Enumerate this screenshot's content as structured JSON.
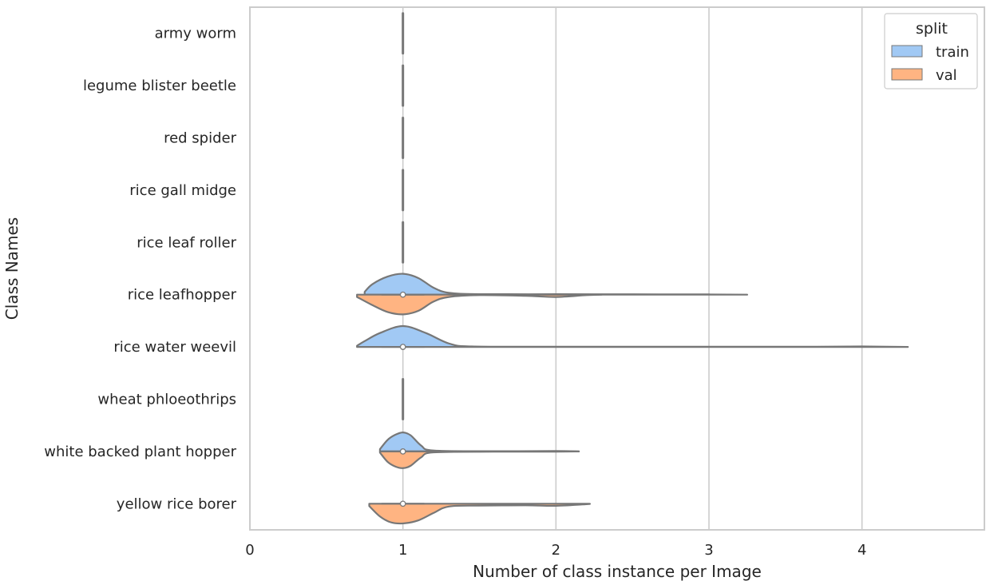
{
  "chart_data": {
    "type": "violin",
    "split": true,
    "orientation": "horizontal",
    "title": "",
    "xlabel": "Number of class instance per Image",
    "ylabel": "Class Names",
    "xlim": [
      0,
      4.8
    ],
    "xticks": [
      "0",
      "1",
      "2",
      "3",
      "4"
    ],
    "grid": "vertical",
    "legend": {
      "title": "split",
      "placement": "top-right",
      "entries": [
        "train",
        "val"
      ]
    },
    "colors": {
      "train": "#a1c9f4",
      "val": "#ffb482",
      "outline": "#777777",
      "grid": "#cccccc",
      "frame": "#cccccc"
    },
    "categories": [
      "army worm",
      "legume blister beetle",
      "red spider",
      "rice gall midge",
      "rice leaf roller",
      "rice leafhopper",
      "rice water weevil",
      "wheat phloeothrips",
      "white backed plant hopper",
      "yellow rice borer"
    ],
    "series": [
      {
        "name": "train",
        "values": [
          {
            "type": "flat",
            "value": 1
          },
          {
            "type": "flat",
            "value": 1
          },
          {
            "type": "flat",
            "value": 1
          },
          {
            "type": "flat",
            "value": 1
          },
          {
            "type": "flat",
            "value": 1
          },
          {
            "type": "kde",
            "min": 0.75,
            "max": 3.25,
            "median": 1,
            "density": [
              [
                0.75,
                0.12
              ],
              [
                0.8,
                0.45
              ],
              [
                0.9,
                0.78
              ],
              [
                1.0,
                0.9
              ],
              [
                1.1,
                0.72
              ],
              [
                1.2,
                0.3
              ],
              [
                1.3,
                0.08
              ],
              [
                1.5,
                0.02
              ],
              [
                2.0,
                0.02
              ],
              [
                2.5,
                0.015
              ],
              [
                3.0,
                0.01
              ],
              [
                3.25,
                0.0
              ]
            ]
          },
          {
            "type": "kde",
            "min": 0.7,
            "max": 4.3,
            "median": 1,
            "density": [
              [
                0.7,
                0.05
              ],
              [
                0.75,
                0.25
              ],
              [
                0.85,
                0.6
              ],
              [
                1.0,
                0.9
              ],
              [
                1.15,
                0.6
              ],
              [
                1.3,
                0.15
              ],
              [
                1.45,
                0.02
              ],
              [
                2.0,
                0.01
              ],
              [
                3.0,
                0.01
              ],
              [
                3.7,
                0.01
              ],
              [
                4.0,
                0.02
              ],
              [
                4.3,
                0.0
              ]
            ]
          },
          {
            "type": "flat",
            "value": 1
          },
          {
            "type": "kde",
            "min": 0.85,
            "max": 2.15,
            "median": 1,
            "density": [
              [
                0.85,
                0.1
              ],
              [
                0.9,
                0.5
              ],
              [
                0.95,
                0.72
              ],
              [
                1.0,
                0.82
              ],
              [
                1.05,
                0.7
              ],
              [
                1.12,
                0.25
              ],
              [
                1.2,
                0.04
              ],
              [
                1.6,
                0.01
              ],
              [
                2.0,
                0.02
              ],
              [
                2.15,
                0.0
              ]
            ]
          },
          {
            "type": "flat",
            "value": 1
          }
        ]
      },
      {
        "name": "val",
        "values": [
          {
            "type": "flat",
            "value": 1
          },
          {
            "type": "flat",
            "value": 1
          },
          {
            "type": "flat",
            "value": 1
          },
          {
            "type": "flat",
            "value": 1
          },
          {
            "type": "flat",
            "value": 1
          },
          {
            "type": "kde",
            "min": 0.7,
            "max": 2.3,
            "median": 1,
            "density": [
              [
                0.7,
                0.1
              ],
              [
                0.8,
                0.45
              ],
              [
                0.9,
                0.75
              ],
              [
                1.0,
                0.85
              ],
              [
                1.1,
                0.7
              ],
              [
                1.2,
                0.3
              ],
              [
                1.3,
                0.1
              ],
              [
                1.5,
                0.02
              ],
              [
                1.8,
                0.05
              ],
              [
                2.0,
                0.1
              ],
              [
                2.2,
                0.02
              ],
              [
                2.3,
                0.0
              ]
            ]
          },
          {
            "type": "flat",
            "value": 1
          },
          {
            "type": "flat",
            "value": 1
          },
          {
            "type": "kde",
            "min": 0.85,
            "max": 2.15,
            "median": 1,
            "density": [
              [
                0.85,
                0.05
              ],
              [
                0.9,
                0.45
              ],
              [
                0.95,
                0.65
              ],
              [
                1.0,
                0.72
              ],
              [
                1.05,
                0.62
              ],
              [
                1.12,
                0.25
              ],
              [
                1.2,
                0.04
              ],
              [
                1.6,
                0.01
              ],
              [
                2.0,
                0.01
              ],
              [
                2.15,
                0.0
              ]
            ]
          },
          {
            "type": "kde",
            "min": 0.78,
            "max": 2.22,
            "median": 1,
            "density": [
              [
                0.78,
                0.1
              ],
              [
                0.85,
                0.55
              ],
              [
                0.92,
                0.8
              ],
              [
                1.0,
                0.85
              ],
              [
                1.1,
                0.72
              ],
              [
                1.2,
                0.4
              ],
              [
                1.3,
                0.12
              ],
              [
                1.5,
                0.08
              ],
              [
                1.8,
                0.07
              ],
              [
                2.0,
                0.09
              ],
              [
                2.2,
                0.02
              ],
              [
                2.22,
                0.0
              ]
            ]
          }
        ]
      }
    ]
  }
}
